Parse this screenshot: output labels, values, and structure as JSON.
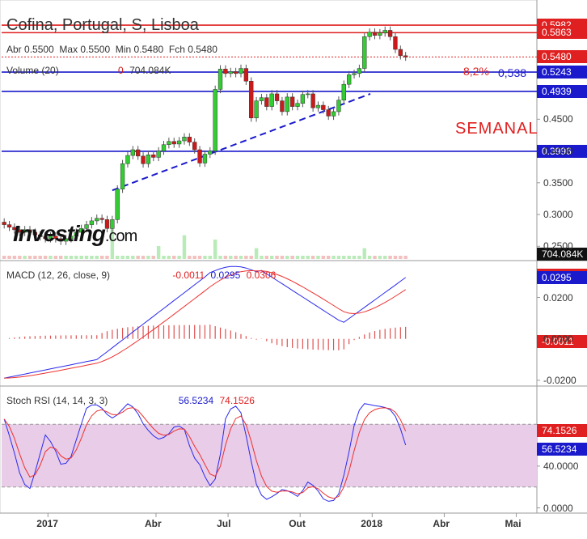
{
  "header": {
    "title": "Cofina, Portugal, S, Lisboa",
    "ohlc_abr_label": "Abr",
    "ohlc_abr": "0.5500",
    "ohlc_max_label": "Max",
    "ohlc_max": "0.5500",
    "ohlc_min_label": "Min",
    "ohlc_min": "0.5480",
    "ohlc_fch_label": "Fch",
    "ohlc_fch": "0.5480",
    "volume_label": "Volume (20)",
    "volume_zero": "0",
    "volume_value": "704.084K"
  },
  "logo": {
    "text_main": "Investing",
    "text_suffix": ".com"
  },
  "annotations": {
    "semanal": "SEMANAL",
    "pct_label": "8,2%",
    "pct_value": "0,538"
  },
  "colors": {
    "up": "#33cc33",
    "down": "#cc1a1a",
    "red_line": "#e02020",
    "blue_line": "#1a1acc",
    "macd_line": "#2a2aee",
    "signal_line": "#ee3030",
    "rsi_band": "#e8cce8"
  },
  "chart_data": {
    "type": "candlestick",
    "title": "Cofina, Portugal, S, Lisboa",
    "timeframe": "weekly",
    "price": {
      "ylim": [
        0.23,
        0.625
      ],
      "y_ticks": [
        0.25,
        0.3,
        0.35,
        0.4,
        0.45
      ],
      "y_tick_labels": [
        "0.2500",
        "0.3000",
        "0.3500",
        "0.4000",
        "0.4500"
      ],
      "tags": [
        {
          "value": 0.5982,
          "label": "0.5982",
          "color": "#e02020"
        },
        {
          "value": 0.5863,
          "label": "0.5863",
          "color": "#e02020"
        },
        {
          "value": 0.548,
          "label": "0.5480",
          "color": "#e02020"
        },
        {
          "value": 0.5243,
          "label": "0.5243",
          "color": "#1a1acc"
        },
        {
          "value": 0.4939,
          "label": "0.4939",
          "color": "#1a1acc"
        },
        {
          "value": 0.3996,
          "label": "0.3996",
          "color": "#1a1acc"
        }
      ],
      "horizontal_lines": [
        {
          "value": 0.5982,
          "color": "#e02020",
          "style": "solid"
        },
        {
          "value": 0.5863,
          "color": "#e02020",
          "style": "solid"
        },
        {
          "value": 0.548,
          "color": "#e02020",
          "style": "dotted"
        },
        {
          "value": 0.5243,
          "color": "#1a1acc",
          "style": "solid"
        },
        {
          "value": 0.4939,
          "color": "#1a1acc",
          "style": "solid"
        },
        {
          "value": 0.3996,
          "color": "#1a1acc",
          "style": "solid"
        }
      ],
      "trendline": {
        "from": [
          21,
          0.338
        ],
        "to": [
          68,
          0.48
        ],
        "color": "#1a1acc",
        "style": "dashed"
      },
      "candles": [
        [
          0.288,
          0.284
        ],
        [
          0.284,
          0.28
        ],
        [
          0.28,
          0.276
        ],
        [
          0.276,
          0.272
        ],
        [
          0.272,
          0.276
        ],
        [
          0.276,
          0.272
        ],
        [
          0.272,
          0.268
        ],
        [
          0.268,
          0.265
        ],
        [
          0.265,
          0.262
        ],
        [
          0.262,
          0.266
        ],
        [
          0.266,
          0.262
        ],
        [
          0.262,
          0.258
        ],
        [
          0.258,
          0.262
        ],
        [
          0.262,
          0.266
        ],
        [
          0.266,
          0.272
        ],
        [
          0.272,
          0.278
        ],
        [
          0.278,
          0.284
        ],
        [
          0.284,
          0.29
        ],
        [
          0.29,
          0.294
        ],
        [
          0.294,
          0.292
        ],
        [
          0.292,
          0.278
        ],
        [
          0.278,
          0.292
        ],
        [
          0.292,
          0.34
        ],
        [
          0.34,
          0.38
        ],
        [
          0.38,
          0.393
        ],
        [
          0.393,
          0.402
        ],
        [
          0.402,
          0.392
        ],
        [
          0.392,
          0.38
        ],
        [
          0.38,
          0.394
        ],
        [
          0.394,
          0.39
        ],
        [
          0.39,
          0.4
        ],
        [
          0.4,
          0.41
        ],
        [
          0.41,
          0.415
        ],
        [
          0.415,
          0.411
        ],
        [
          0.411,
          0.416
        ],
        [
          0.416,
          0.422
        ],
        [
          0.422,
          0.414
        ],
        [
          0.414,
          0.402
        ],
        [
          0.402,
          0.381
        ],
        [
          0.381,
          0.395
        ],
        [
          0.395,
          0.4
        ],
        [
          0.4,
          0.497
        ],
        [
          0.497,
          0.529
        ],
        [
          0.529,
          0.522
        ],
        [
          0.522,
          0.525
        ],
        [
          0.525,
          0.522
        ],
        [
          0.522,
          0.53
        ],
        [
          0.53,
          0.51
        ],
        [
          0.51,
          0.452
        ],
        [
          0.452,
          0.479
        ],
        [
          0.479,
          0.484
        ],
        [
          0.484,
          0.47
        ],
        [
          0.47,
          0.49
        ],
        [
          0.49,
          0.479
        ],
        [
          0.479,
          0.462
        ],
        [
          0.462,
          0.485
        ],
        [
          0.485,
          0.47
        ],
        [
          0.47,
          0.475
        ],
        [
          0.475,
          0.489
        ],
        [
          0.489,
          0.49
        ],
        [
          0.49,
          0.468
        ],
        [
          0.468,
          0.472
        ],
        [
          0.472,
          0.465
        ],
        [
          0.465,
          0.455
        ],
        [
          0.455,
          0.462
        ],
        [
          0.462,
          0.48
        ],
        [
          0.48,
          0.505
        ],
        [
          0.505,
          0.52
        ],
        [
          0.52,
          0.522
        ],
        [
          0.522,
          0.53
        ],
        [
          0.53,
          0.58
        ],
        [
          0.58,
          0.587
        ],
        [
          0.587,
          0.582
        ],
        [
          0.582,
          0.586
        ],
        [
          0.586,
          0.59
        ],
        [
          0.59,
          0.58
        ],
        [
          0.58,
          0.56
        ],
        [
          0.56,
          0.55
        ],
        [
          0.55,
          0.548
        ]
      ],
      "volume": [
        3,
        3,
        3,
        3,
        3,
        3,
        3,
        3,
        3,
        3,
        3,
        3,
        3,
        3,
        3,
        3,
        3,
        3,
        3,
        3,
        3,
        3,
        3,
        3,
        3,
        3,
        3,
        3,
        3,
        3,
        3,
        3,
        3,
        3,
        3,
        3,
        3,
        3,
        3,
        3,
        3,
        3,
        3,
        3,
        3,
        3,
        3,
        3,
        3,
        3,
        3,
        3,
        3,
        3,
        3,
        3,
        3,
        3,
        3,
        3,
        3,
        3,
        3,
        3,
        3,
        3,
        3,
        3,
        3,
        3,
        3,
        3,
        3,
        3,
        3,
        3,
        3,
        3,
        3
      ],
      "volume_spikes": [
        {
          "i": 21,
          "v": 30
        },
        {
          "i": 30,
          "v": 12
        },
        {
          "i": 35,
          "v": 22
        },
        {
          "i": 41,
          "v": 18
        },
        {
          "i": 49,
          "v": 10
        },
        {
          "i": 70,
          "v": 10
        }
      ]
    },
    "macd": {
      "label": "MACD (12, 26, close, 9)",
      "values": [
        "-0.0011",
        "0.0295",
        "0.0306"
      ],
      "ylim": [
        -0.022,
        0.037
      ],
      "y_ticks": [
        -0.02,
        0.0,
        0.02
      ],
      "y_tick_labels": [
        "-0.0200",
        "0.0000",
        "0.0200"
      ],
      "tags": [
        {
          "value": 0.0306,
          "label": "0.0306",
          "color": "#e02020"
        },
        {
          "value": 0.0295,
          "label": "0.0295",
          "color": "#1a1acc"
        },
        {
          "value": -0.0011,
          "label": "-0.0011",
          "color": "#e02020"
        }
      ]
    },
    "stoch_rsi": {
      "label": "Stoch RSI (14, 14, 3, 3)",
      "values": [
        "56.5234",
        "74.1526"
      ],
      "ylim": [
        -5,
        115
      ],
      "band": [
        20,
        80
      ],
      "y_ticks": [
        0,
        40
      ],
      "y_tick_labels": [
        "0.0000",
        "40.0000"
      ],
      "tags": [
        {
          "value": 74.1526,
          "label": "74.1526",
          "color": "#e02020"
        },
        {
          "value": 56.5234,
          "label": "56.5234",
          "color": "#1a1acc"
        }
      ]
    },
    "x_ticks": [
      {
        "i": 9,
        "label": "2017"
      },
      {
        "i": 30,
        "label": "Abr"
      },
      {
        "i": 44,
        "label": "Jul"
      },
      {
        "i": 58,
        "label": "Out"
      },
      {
        "i": 72,
        "label": "2018"
      },
      {
        "i": 86,
        "label": "Abr"
      },
      {
        "i": 100,
        "label": "Mai"
      }
    ]
  }
}
